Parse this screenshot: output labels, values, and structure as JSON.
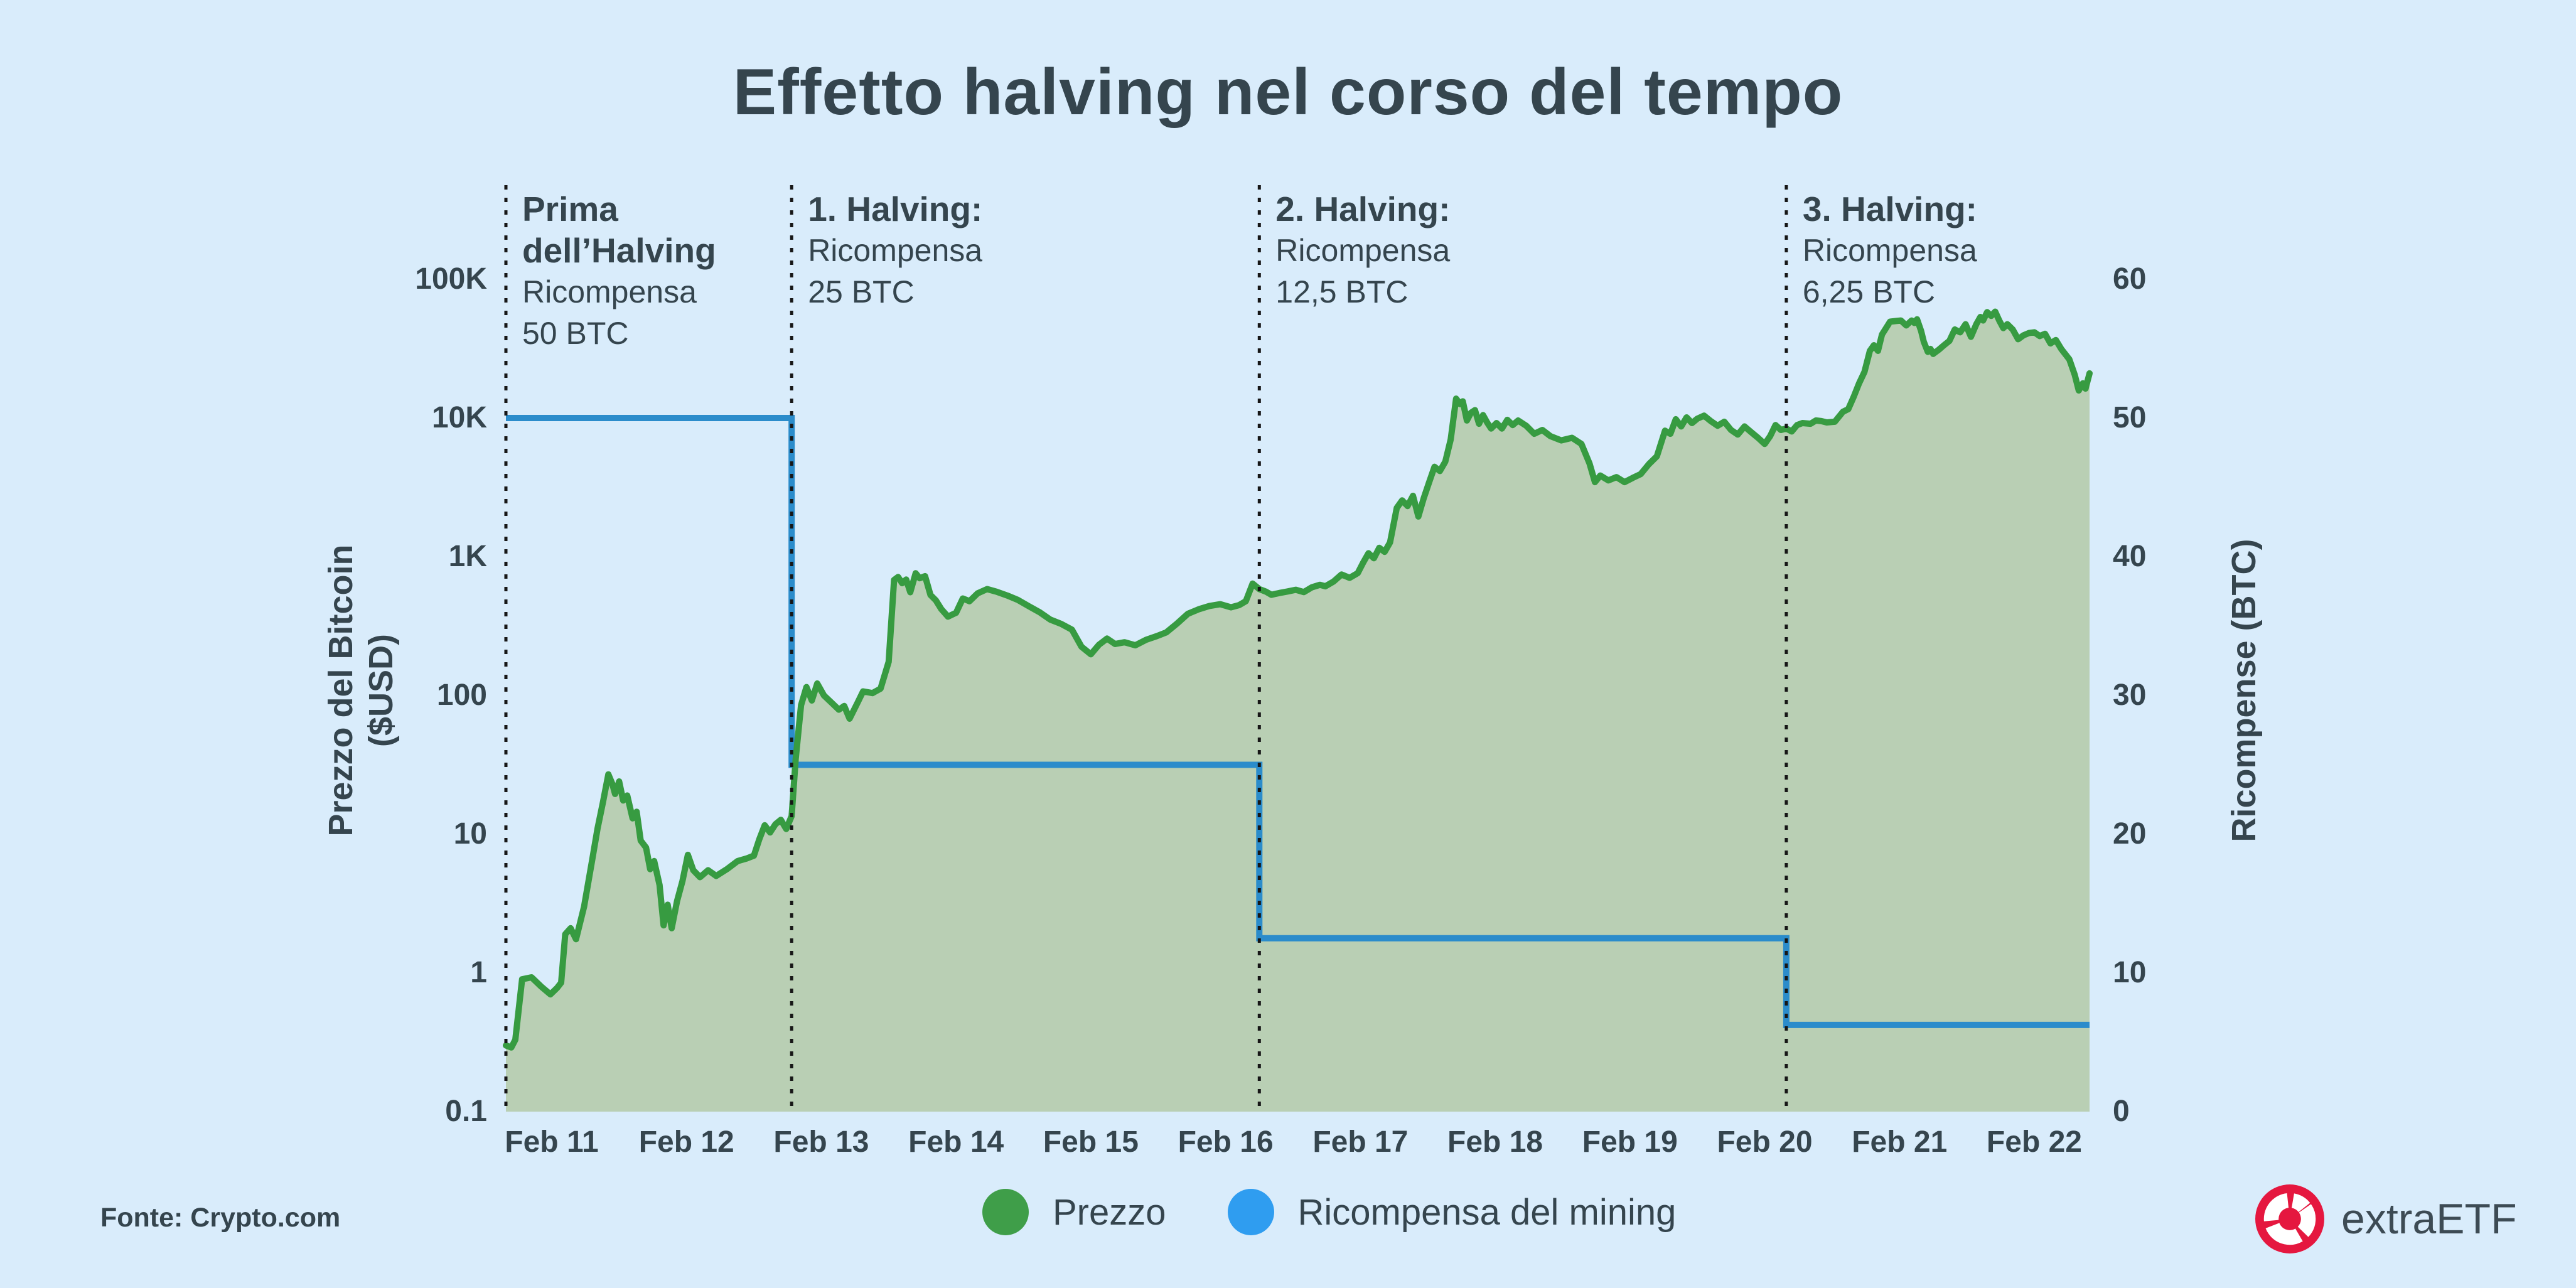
{
  "page": {
    "background": "#d9ecfb",
    "title": "Effetto halving nel corso del tempo",
    "title_color": "#35454e"
  },
  "footer": {
    "source_label": "Fonte: Crypto.com",
    "brand": "extraETF",
    "brand_icon": "extraetf-red-donut-logo",
    "brand_red": "#e5173f"
  },
  "legend": {
    "items": [
      {
        "label": "Prezzo",
        "color": "#3f9e49",
        "marker": "circle"
      },
      {
        "label": "Ricompensa del mining",
        "color": "#2f9df0",
        "marker": "circle"
      }
    ]
  },
  "chart_data": {
    "type": "area",
    "title": "Effetto halving nel corso del tempo",
    "grid": false,
    "legend_position": "bottom-center",
    "x_axis": {
      "tick_labels": [
        "Feb 11",
        "Feb 12",
        "Feb 13",
        "Feb 14",
        "Feb 15",
        "Feb 16",
        "Feb 17",
        "Feb 18",
        "Feb 19",
        "Feb 20",
        "Feb 21",
        "Feb 22"
      ],
      "tick_years": [
        2011,
        2012,
        2013,
        2014,
        2015,
        2016,
        2017,
        2018,
        2019,
        2020,
        2021,
        2022
      ],
      "range_years": [
        2010.66,
        2022.41
      ]
    },
    "y_left": {
      "label": "Prezzo del Bitcoin ($USD)",
      "label_lines": [
        "Prezzo del Bitcoin",
        "($USD)"
      ],
      "scale": "log",
      "ticks": [
        "100K",
        "10K",
        "1K",
        "100",
        "10",
        "1",
        "0.1"
      ],
      "tick_values": [
        100000,
        10000,
        1000,
        100,
        10,
        1,
        0.1
      ],
      "range": [
        0.1,
        100000
      ]
    },
    "y_right": {
      "label": "Ricompense (BTC)",
      "scale": "linear",
      "ticks": [
        "60",
        "50",
        "40",
        "30",
        "20",
        "10",
        "0"
      ],
      "tick_values": [
        60,
        50,
        40,
        30,
        20,
        10,
        0
      ],
      "range": [
        0,
        60
      ]
    },
    "halvings": [
      {
        "x_year": 2010.66,
        "bold_lines": [
          "Prima",
          "dell’Halving"
        ],
        "normal_lines": [
          "Ricompensa",
          "50 BTC"
        ]
      },
      {
        "x_year": 2012.78,
        "bold_lines": [
          "1. Halving:"
        ],
        "normal_lines": [
          "Ricompensa",
          "25 BTC"
        ]
      },
      {
        "x_year": 2016.25,
        "bold_lines": [
          "2. Halving:"
        ],
        "normal_lines": [
          "Ricompensa",
          "12,5 BTC"
        ]
      },
      {
        "x_year": 2020.16,
        "bold_lines": [
          "3. Halving:"
        ],
        "normal_lines": [
          "Ricompensa",
          "6,25 BTC"
        ]
      }
    ],
    "series": [
      {
        "name": "Prezzo",
        "type": "area",
        "axis": "left",
        "line_color": "#379b41",
        "fill_color": "#b9cfb4",
        "points": [
          [
            2010.66,
            0.3
          ],
          [
            2010.7,
            0.29
          ],
          [
            2010.73,
            0.33
          ],
          [
            2010.78,
            0.9
          ],
          [
            2010.85,
            0.93
          ],
          [
            2010.92,
            0.8
          ],
          [
            2010.99,
            0.7
          ],
          [
            2011.04,
            0.78
          ],
          [
            2011.07,
            0.85
          ],
          [
            2011.1,
            1.9
          ],
          [
            2011.14,
            2.1
          ],
          [
            2011.18,
            1.75
          ],
          [
            2011.24,
            3
          ],
          [
            2011.3,
            6.5
          ],
          [
            2011.34,
            11
          ],
          [
            2011.38,
            17
          ],
          [
            2011.42,
            27
          ],
          [
            2011.45,
            23
          ],
          [
            2011.47,
            19.5
          ],
          [
            2011.5,
            24
          ],
          [
            2011.53,
            17.5
          ],
          [
            2011.56,
            19
          ],
          [
            2011.6,
            13
          ],
          [
            2011.63,
            14.5
          ],
          [
            2011.66,
            9
          ],
          [
            2011.7,
            8
          ],
          [
            2011.73,
            5.6
          ],
          [
            2011.76,
            6.4
          ],
          [
            2011.8,
            4.3
          ],
          [
            2011.83,
            2.2
          ],
          [
            2011.86,
            3.1
          ],
          [
            2011.89,
            2.1
          ],
          [
            2011.93,
            3.3
          ],
          [
            2011.97,
            4.6
          ],
          [
            2012.01,
            7.1
          ],
          [
            2012.05,
            5.5
          ],
          [
            2012.1,
            4.9
          ],
          [
            2012.16,
            5.5
          ],
          [
            2012.22,
            5
          ],
          [
            2012.3,
            5.6
          ],
          [
            2012.38,
            6.4
          ],
          [
            2012.45,
            6.7
          ],
          [
            2012.5,
            7
          ],
          [
            2012.54,
            9.2
          ],
          [
            2012.58,
            11.6
          ],
          [
            2012.62,
            10.3
          ],
          [
            2012.66,
            11.8
          ],
          [
            2012.7,
            12.7
          ],
          [
            2012.74,
            10.9
          ],
          [
            2012.78,
            13.5
          ],
          [
            2012.81,
            35
          ],
          [
            2012.85,
            85
          ],
          [
            2012.89,
            115
          ],
          [
            2012.93,
            92
          ],
          [
            2012.97,
            122
          ],
          [
            2013.02,
            100
          ],
          [
            2013.08,
            88
          ],
          [
            2013.13,
            79
          ],
          [
            2013.17,
            84
          ],
          [
            2013.21,
            68
          ],
          [
            2013.27,
            89
          ],
          [
            2013.31,
            107
          ],
          [
            2013.38,
            104
          ],
          [
            2013.44,
            112
          ],
          [
            2013.5,
            175
          ],
          [
            2013.54,
            680
          ],
          [
            2013.57,
            715
          ],
          [
            2013.6,
            645
          ],
          [
            2013.63,
            685
          ],
          [
            2013.66,
            555
          ],
          [
            2013.7,
            760
          ],
          [
            2013.73,
            700
          ],
          [
            2013.77,
            725
          ],
          [
            2013.81,
            530
          ],
          [
            2013.85,
            485
          ],
          [
            2013.89,
            420
          ],
          [
            2013.94,
            370
          ],
          [
            2014,
            395
          ],
          [
            2014.05,
            500
          ],
          [
            2014.1,
            478
          ],
          [
            2014.16,
            545
          ],
          [
            2014.23,
            585
          ],
          [
            2014.3,
            560
          ],
          [
            2014.38,
            525
          ],
          [
            2014.46,
            488
          ],
          [
            2014.54,
            440
          ],
          [
            2014.62,
            398
          ],
          [
            2014.7,
            352
          ],
          [
            2014.78,
            328
          ],
          [
            2014.86,
            298
          ],
          [
            2014.93,
            225
          ],
          [
            2015,
            198
          ],
          [
            2015.06,
            232
          ],
          [
            2015.12,
            257
          ],
          [
            2015.18,
            235
          ],
          [
            2015.25,
            242
          ],
          [
            2015.33,
            230
          ],
          [
            2015.41,
            252
          ],
          [
            2015.49,
            268
          ],
          [
            2015.56,
            285
          ],
          [
            2015.64,
            330
          ],
          [
            2015.72,
            388
          ],
          [
            2015.8,
            418
          ],
          [
            2015.88,
            442
          ],
          [
            2015.96,
            455
          ],
          [
            2016.04,
            432
          ],
          [
            2016.1,
            448
          ],
          [
            2016.15,
            478
          ],
          [
            2016.2,
            640
          ],
          [
            2016.25,
            585
          ],
          [
            2016.3,
            560
          ],
          [
            2016.34,
            532
          ],
          [
            2016.4,
            548
          ],
          [
            2016.46,
            562
          ],
          [
            2016.52,
            578
          ],
          [
            2016.58,
            556
          ],
          [
            2016.64,
            602
          ],
          [
            2016.7,
            628
          ],
          [
            2016.74,
            612
          ],
          [
            2016.8,
            662
          ],
          [
            2016.86,
            745
          ],
          [
            2016.92,
            705
          ],
          [
            2016.98,
            762
          ],
          [
            2017.02,
            905
          ],
          [
            2017.06,
            1060
          ],
          [
            2017.1,
            975
          ],
          [
            2017.14,
            1160
          ],
          [
            2017.18,
            1085
          ],
          [
            2017.22,
            1270
          ],
          [
            2017.27,
            2250
          ],
          [
            2017.31,
            2550
          ],
          [
            2017.35,
            2320
          ],
          [
            2017.39,
            2750
          ],
          [
            2017.43,
            1950
          ],
          [
            2017.47,
            2650
          ],
          [
            2017.51,
            3450
          ],
          [
            2017.55,
            4450
          ],
          [
            2017.59,
            4150
          ],
          [
            2017.63,
            4850
          ],
          [
            2017.67,
            7000
          ],
          [
            2017.71,
            13800
          ],
          [
            2017.74,
            12600
          ],
          [
            2017.76,
            13200
          ],
          [
            2017.79,
            9600
          ],
          [
            2017.82,
            10900
          ],
          [
            2017.85,
            11400
          ],
          [
            2017.88,
            9100
          ],
          [
            2017.91,
            10500
          ],
          [
            2017.94,
            9300
          ],
          [
            2017.97,
            8400
          ],
          [
            2018.01,
            9200
          ],
          [
            2018.05,
            8400
          ],
          [
            2018.09,
            9700
          ],
          [
            2018.13,
            8900
          ],
          [
            2018.17,
            9600
          ],
          [
            2018.23,
            8800
          ],
          [
            2018.29,
            7700
          ],
          [
            2018.35,
            8200
          ],
          [
            2018.41,
            7400
          ],
          [
            2018.49,
            6900
          ],
          [
            2018.57,
            7200
          ],
          [
            2018.64,
            6500
          ],
          [
            2018.7,
            4700
          ],
          [
            2018.74,
            3450
          ],
          [
            2018.78,
            3850
          ],
          [
            2018.84,
            3550
          ],
          [
            2018.9,
            3750
          ],
          [
            2018.96,
            3450
          ],
          [
            2019.02,
            3700
          ],
          [
            2019.08,
            3950
          ],
          [
            2019.14,
            4650
          ],
          [
            2019.2,
            5300
          ],
          [
            2019.26,
            8100
          ],
          [
            2019.3,
            7700
          ],
          [
            2019.34,
            9800
          ],
          [
            2019.38,
            8700
          ],
          [
            2019.42,
            10100
          ],
          [
            2019.46,
            9200
          ],
          [
            2019.5,
            9900
          ],
          [
            2019.55,
            10400
          ],
          [
            2019.6,
            9500
          ],
          [
            2019.65,
            8800
          ],
          [
            2019.7,
            9400
          ],
          [
            2019.75,
            8200
          ],
          [
            2019.8,
            7600
          ],
          [
            2019.85,
            8700
          ],
          [
            2019.9,
            7900
          ],
          [
            2019.95,
            7200
          ],
          [
            2020,
            6500
          ],
          [
            2020.04,
            7400
          ],
          [
            2020.08,
            8900
          ],
          [
            2020.12,
            8200
          ],
          [
            2020.16,
            8400
          ],
          [
            2020.2,
            8000
          ],
          [
            2020.24,
            8900
          ],
          [
            2020.28,
            9200
          ],
          [
            2020.34,
            9100
          ],
          [
            2020.38,
            9600
          ],
          [
            2020.42,
            9500
          ],
          [
            2020.46,
            9300
          ],
          [
            2020.52,
            9400
          ],
          [
            2020.58,
            11100
          ],
          [
            2020.62,
            11600
          ],
          [
            2020.66,
            14200
          ],
          [
            2020.7,
            17800
          ],
          [
            2020.74,
            21500
          ],
          [
            2020.78,
            30500
          ],
          [
            2020.81,
            33500
          ],
          [
            2020.84,
            30500
          ],
          [
            2020.87,
            40000
          ],
          [
            2020.9,
            44500
          ],
          [
            2020.93,
            49500
          ],
          [
            2020.97,
            50000
          ],
          [
            2021.01,
            50500
          ],
          [
            2021.05,
            46500
          ],
          [
            2021.09,
            50500
          ],
          [
            2021.11,
            48500
          ],
          [
            2021.13,
            51500
          ],
          [
            2021.16,
            42500
          ],
          [
            2021.18,
            35500
          ],
          [
            2021.21,
            30000
          ],
          [
            2021.23,
            31500
          ],
          [
            2021.25,
            29000
          ],
          [
            2021.29,
            31000
          ],
          [
            2021.33,
            33500
          ],
          [
            2021.37,
            36000
          ],
          [
            2021.41,
            43500
          ],
          [
            2021.45,
            41500
          ],
          [
            2021.49,
            47500
          ],
          [
            2021.53,
            38500
          ],
          [
            2021.57,
            47500
          ],
          [
            2021.6,
            53500
          ],
          [
            2021.62,
            50500
          ],
          [
            2021.65,
            58000
          ],
          [
            2021.68,
            54500
          ],
          [
            2021.71,
            58500
          ],
          [
            2021.74,
            50500
          ],
          [
            2021.77,
            44500
          ],
          [
            2021.8,
            47500
          ],
          [
            2021.84,
            43500
          ],
          [
            2021.88,
            37000
          ],
          [
            2021.92,
            39500
          ],
          [
            2021.96,
            41000
          ],
          [
            2022,
            41500
          ],
          [
            2022.04,
            39000
          ],
          [
            2022.08,
            40500
          ],
          [
            2022.12,
            34500
          ],
          [
            2022.16,
            36500
          ],
          [
            2022.2,
            31500
          ],
          [
            2022.26,
            26500
          ],
          [
            2022.3,
            20500
          ],
          [
            2022.33,
            15800
          ],
          [
            2022.36,
            17800
          ],
          [
            2022.38,
            16300
          ],
          [
            2022.41,
            21000
          ]
        ]
      },
      {
        "name": "Ricompensa del mining",
        "type": "step-line",
        "axis": "right",
        "line_color": "#2b8ccb",
        "steps": [
          {
            "from_year": 2010.66,
            "to_year": 2012.78,
            "btc": 50
          },
          {
            "from_year": 2012.78,
            "to_year": 2016.25,
            "btc": 25
          },
          {
            "from_year": 2016.25,
            "to_year": 2020.16,
            "btc": 12.5
          },
          {
            "from_year": 2020.16,
            "to_year": 2022.41,
            "btc": 6.25
          }
        ]
      }
    ],
    "colors": {
      "price_line": "#379b41",
      "price_fill": "#b9cfb4",
      "reward_line": "#2b8ccb",
      "halving_dotted_line": "#161616",
      "text": "#35454e",
      "background": "#d9ecfb"
    }
  }
}
